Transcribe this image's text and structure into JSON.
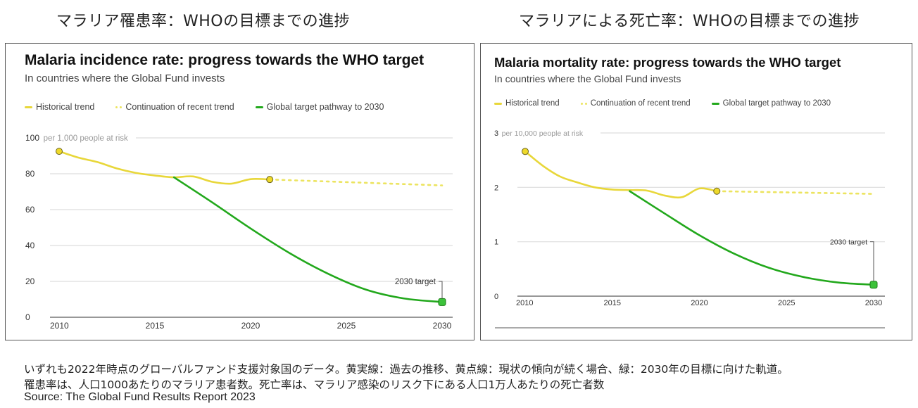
{
  "headings": {
    "left": "マラリア罹患率：WHOの目標までの進捗",
    "right": "マラリアによる死亡率：WHOの目標までの進捗"
  },
  "legend_labels": {
    "historical": "Historical trend",
    "continuation": "Continuation of recent trend",
    "target": "Global target pathway to 2030"
  },
  "colors": {
    "historical": "#e8d73a",
    "continuation": "#ece460",
    "target": "#22a81c",
    "marker_fill": "#eed92a",
    "grid": "#dddddd",
    "axis": "#777777"
  },
  "chart_data": [
    {
      "type": "line",
      "title": "Malaria incidence rate: progress towards the WHO target",
      "subtitle": "In countries where the Global Fund invests",
      "ylabel": "per 1,000 people at risk",
      "xlim": [
        2010,
        2030
      ],
      "ylim": [
        0,
        100
      ],
      "yticks": [
        0,
        20,
        40,
        60,
        80,
        100
      ],
      "xticks": [
        2010,
        2015,
        2020,
        2025,
        2030
      ],
      "grid": true,
      "legend_position": "top-left",
      "annotation": "2030 target",
      "series": [
        {
          "name": "Historical trend",
          "style": "solid",
          "x": [
            2010,
            2011,
            2012,
            2013,
            2014,
            2015,
            2016,
            2017,
            2018,
            2019,
            2020,
            2021
          ],
          "y": [
            92.5,
            89,
            86.5,
            83,
            80.5,
            79,
            78,
            78.5,
            75.5,
            74.5,
            77,
            76.8
          ]
        },
        {
          "name": "Continuation of recent trend",
          "style": "dotted",
          "x": [
            2021,
            2030
          ],
          "y": [
            76.8,
            73.5
          ]
        },
        {
          "name": "Global target pathway to 2030",
          "style": "solid",
          "x": [
            2016,
            2018,
            2020,
            2022,
            2024,
            2026,
            2028,
            2030
          ],
          "y": [
            78,
            64,
            49.5,
            36,
            24.5,
            15.5,
            10.5,
            8.5
          ]
        }
      ],
      "markers": [
        {
          "x": 2010,
          "y": 92.5,
          "series": "Historical trend"
        },
        {
          "x": 2021,
          "y": 76.8,
          "series": "Historical trend"
        },
        {
          "x": 2030,
          "y": 8.5,
          "series": "Global target pathway to 2030"
        }
      ]
    },
    {
      "type": "line",
      "title": "Malaria mortality rate: progress towards the WHO target",
      "subtitle": "In countries where the Global Fund invests",
      "ylabel": "per 10,000 people at risk",
      "xlim": [
        2010,
        2030
      ],
      "ylim": [
        0,
        3
      ],
      "yticks": [
        0,
        1,
        2,
        3
      ],
      "xticks": [
        2010,
        2015,
        2020,
        2025,
        2030
      ],
      "grid": true,
      "legend_position": "top-left",
      "annotation": "2030 target",
      "series": [
        {
          "name": "Historical trend",
          "style": "solid",
          "x": [
            2010,
            2011,
            2012,
            2013,
            2014,
            2015,
            2016,
            2017,
            2018,
            2019,
            2020,
            2021
          ],
          "y": [
            2.66,
            2.4,
            2.2,
            2.09,
            2.0,
            1.96,
            1.95,
            1.94,
            1.85,
            1.82,
            1.98,
            1.93
          ]
        },
        {
          "name": "Continuation of recent trend",
          "style": "dotted",
          "x": [
            2021,
            2030
          ],
          "y": [
            1.93,
            1.88
          ]
        },
        {
          "name": "Global target pathway to 2030",
          "style": "solid",
          "x": [
            2016,
            2018,
            2020,
            2022,
            2024,
            2026,
            2028,
            2030
          ],
          "y": [
            1.93,
            1.52,
            1.12,
            0.78,
            0.52,
            0.35,
            0.25,
            0.21
          ]
        }
      ],
      "markers": [
        {
          "x": 2010,
          "y": 2.66,
          "series": "Historical trend"
        },
        {
          "x": 2021,
          "y": 1.93,
          "series": "Historical trend"
        },
        {
          "x": 2030,
          "y": 0.21,
          "series": "Global target pathway to 2030"
        }
      ]
    }
  ],
  "footnote": {
    "line1": "いずれも2022年時点のグローバルファンド支援対象国のデータ。黄実線：過去の推移、黄点線：現状の傾向が続く場合、緑：2030年の目標に向けた軌道。",
    "line2": "罹患率は、人口1000あたりのマラリア患者数。死亡率は、マラリア感染のリスク下にある人口1万人あたりの死亡者数",
    "source": "Source: The Global Fund Results Report 2023"
  }
}
